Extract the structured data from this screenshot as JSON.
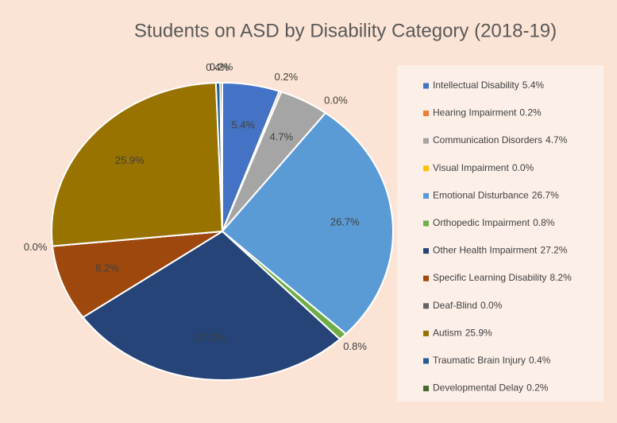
{
  "chart_data": {
    "type": "pie",
    "title": "Students on ASD by Disability Category (2018-19)",
    "categories": [
      "Intellectual Disability",
      "Hearing Impairment",
      "Communication Disorders",
      "Visual Impairment",
      "Emotional Disturbance",
      "Orthopedic Impairment",
      "Other Health Impairment",
      "Specific Learning Disability",
      "Deaf-Blind",
      "Autism",
      "Traumatic Brain Injury",
      "Developmental Delay"
    ],
    "values": [
      5.4,
      0.2,
      4.7,
      0.0,
      26.7,
      0.8,
      27.2,
      8.2,
      0.0,
      25.9,
      0.4,
      0.2
    ],
    "value_labels": [
      "5.4%",
      "0.2%",
      "4.7%",
      "0.0%",
      "26.7%",
      "0.8%",
      "27.2%",
      "8.2%",
      "0.0%",
      "25.9%",
      "0.4%",
      "0.2%"
    ],
    "colors": [
      "#4472c4",
      "#ed7d31",
      "#a5a5a5",
      "#ffc000",
      "#5b9bd5",
      "#70ad47",
      "#264478",
      "#9e480e",
      "#636363",
      "#997300",
      "#255e91",
      "#43682b"
    ],
    "legend": "right"
  }
}
